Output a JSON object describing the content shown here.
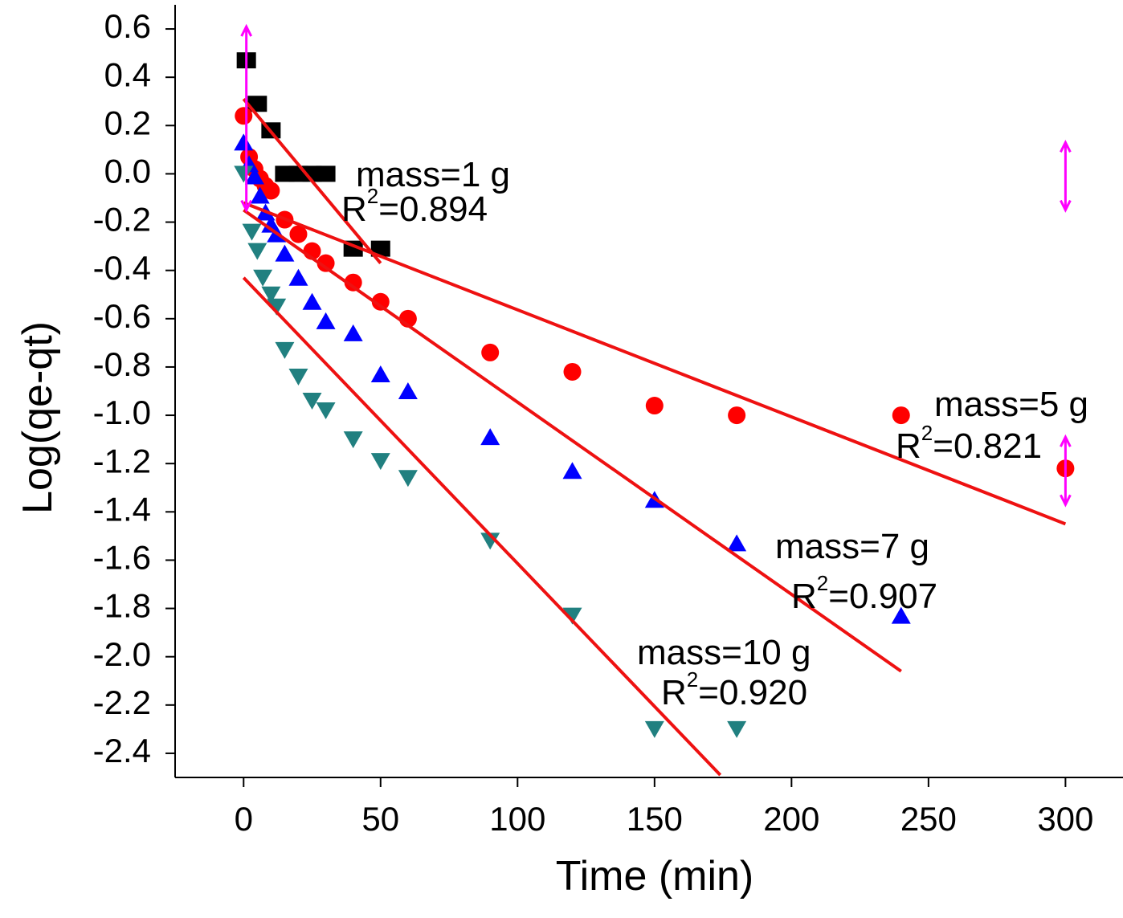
{
  "chart_data": {
    "type": "scatter",
    "x_label": "Time (min)",
    "y_label": "Log(qe-qt)",
    "xlim": [
      -25,
      321
    ],
    "ylim": [
      -2.5,
      0.7
    ],
    "xticks": [
      0,
      50,
      100,
      150,
      200,
      250,
      300
    ],
    "yticks": [
      0.6,
      0.4,
      0.2,
      {
        "value": 0,
        "label": "0.0"
      },
      -0.2,
      -0.4,
      -0.6,
      -0.8,
      {
        "value": -1,
        "label": "-1.0"
      },
      -1.2,
      -1.4,
      -1.6,
      -1.8,
      {
        "value": -2,
        "label": "-2.0"
      },
      -2.2,
      -2.4
    ],
    "fit_color": "#ee1111",
    "r2_symbol": "R",
    "r2_sup": "2",
    "series": [
      {
        "name": "mass=1 g",
        "r2_label": "=0.894",
        "marker": "square",
        "color": "#000000",
        "x": [
          1,
          5,
          10,
          15,
          20,
          25,
          30,
          40,
          50
        ],
        "values": [
          0.47,
          0.29,
          0.18,
          0,
          0,
          0,
          0,
          -0.31,
          -0.31
        ],
        "fit": {
          "x": [
            0,
            50
          ],
          "values": [
            0.31,
            -0.37
          ]
        }
      },
      {
        "name": "mass=5 g",
        "r2_label": "=0.821",
        "marker": "circle",
        "color": "#ff0000",
        "x": [
          0,
          2,
          4,
          6,
          8,
          10,
          15,
          20,
          25,
          30,
          40,
          50,
          60,
          90,
          120,
          150,
          180,
          240,
          300
        ],
        "values": [
          0.24,
          0.07,
          0.02,
          -0.02,
          -0.05,
          -0.07,
          -0.19,
          -0.25,
          -0.32,
          -0.37,
          -0.45,
          -0.53,
          -0.6,
          -0.74,
          -0.82,
          -0.96,
          -1.0,
          -1.0,
          -1.22
        ],
        "fit": {
          "x": [
            0,
            300
          ],
          "values": [
            -0.12,
            -1.45
          ]
        }
      },
      {
        "name": "mass=7 g",
        "r2_label": "=0.907",
        "marker": "triangle",
        "color": "#0000ff",
        "x": [
          0,
          2,
          4,
          6,
          8,
          10,
          12,
          15,
          20,
          25,
          30,
          40,
          50,
          60,
          90,
          120,
          150,
          180,
          240
        ],
        "values": [
          0.13,
          0.04,
          -0.01,
          -0.09,
          -0.16,
          -0.21,
          -0.25,
          -0.33,
          -0.43,
          -0.53,
          -0.61,
          -0.66,
          -0.83,
          -0.9,
          -1.09,
          -1.23,
          -1.35,
          -1.53,
          -1.83
        ],
        "fit": {
          "x": [
            0,
            240
          ],
          "values": [
            -0.15,
            -2.06
          ]
        }
      },
      {
        "name": "mass=10 g",
        "r2_label": "=0.920",
        "marker": "down-triangle",
        "color": "#218080",
        "x": [
          0,
          3,
          5,
          7,
          10,
          12,
          15,
          20,
          25,
          30,
          40,
          50,
          60,
          90,
          120,
          150,
          180
        ],
        "values": [
          0,
          -0.24,
          -0.32,
          -0.43,
          -0.5,
          -0.55,
          -0.73,
          -0.84,
          -0.94,
          -0.98,
          -1.1,
          -1.19,
          -1.26,
          -1.52,
          -1.83,
          -2.3,
          -2.3
        ],
        "fit": {
          "x": [
            0,
            174
          ],
          "values": [
            -0.43,
            -2.49
          ]
        }
      }
    ],
    "error_bars": {
      "color": "#ff00ff",
      "x": [
        1,
        300,
        300
      ],
      "values": [
        0.23,
        -0.01,
        -1.23
      ],
      "errors": [
        0.38,
        0.14,
        0.14
      ]
    }
  }
}
